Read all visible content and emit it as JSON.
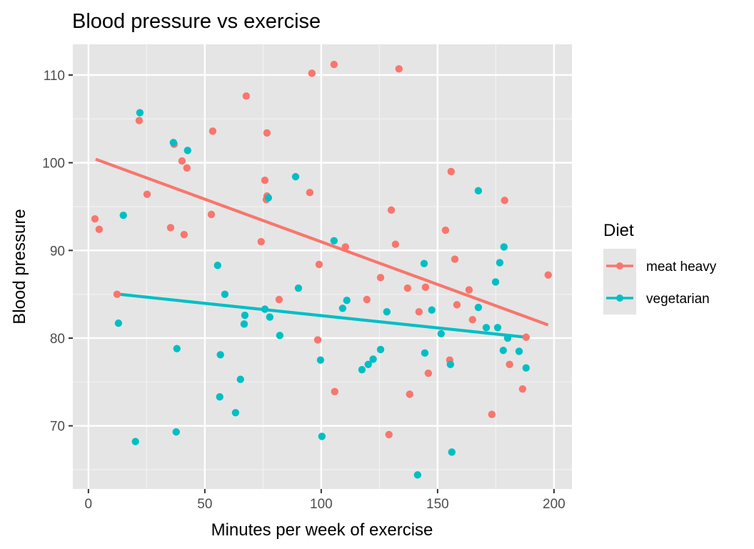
{
  "chart_data": {
    "type": "scatter",
    "title": "Blood pressure vs exercise",
    "xlabel": "Minutes per week of exercise",
    "ylabel": "Blood pressure",
    "xlim": [
      -6.7,
      207.7
    ],
    "ylim": [
      62.8,
      113.5
    ],
    "xticks": [
      0,
      50,
      100,
      150,
      200
    ],
    "xtick_labels": [
      "0",
      "50",
      "100",
      "150",
      "200"
    ],
    "yticks": [
      70,
      80,
      90,
      100,
      110
    ],
    "ytick_labels": [
      "70",
      "80",
      "90",
      "100",
      "110"
    ],
    "x_minor_gridlines": [
      25,
      75,
      125,
      175
    ],
    "y_minor_gridlines": [
      65,
      75,
      85,
      95,
      105
    ],
    "grid": true,
    "panel_background": "#e5e5e5",
    "legend": {
      "title": "Diet",
      "position": "right",
      "entries": [
        "meat heavy",
        "vegetarian"
      ]
    },
    "series": [
      {
        "name": "meat heavy",
        "color": "#f8766d",
        "points": [
          [
            2.8,
            93.6
          ],
          [
            4.6,
            92.4
          ],
          [
            12.3,
            85.0
          ],
          [
            21.8,
            104.8
          ],
          [
            25.2,
            96.4
          ],
          [
            36.8,
            102.1
          ],
          [
            35.3,
            92.6
          ],
          [
            40.2,
            100.2
          ],
          [
            42.3,
            99.4
          ],
          [
            41.1,
            91.8
          ],
          [
            53.4,
            103.6
          ],
          [
            52.8,
            94.1
          ],
          [
            67.8,
            107.6
          ],
          [
            76.7,
            103.4
          ],
          [
            75.8,
            98.0
          ],
          [
            76.7,
            96.2
          ],
          [
            76.4,
            95.8
          ],
          [
            74.2,
            91.0
          ],
          [
            81.9,
            84.4
          ],
          [
            96.0,
            110.2
          ],
          [
            95.1,
            96.6
          ],
          [
            99.1,
            88.4
          ],
          [
            98.5,
            79.8
          ],
          [
            105.5,
            111.2
          ],
          [
            110.4,
            90.4
          ],
          [
            105.8,
            73.9
          ],
          [
            119.6,
            84.4
          ],
          [
            125.5,
            86.9
          ],
          [
            130.1,
            94.6
          ],
          [
            131.9,
            90.7
          ],
          [
            129.1,
            69.0
          ],
          [
            133.4,
            110.7
          ],
          [
            137.1,
            85.7
          ],
          [
            138.0,
            73.6
          ],
          [
            142.0,
            83.0
          ],
          [
            144.8,
            85.8
          ],
          [
            146.0,
            76.0
          ],
          [
            153.4,
            92.3
          ],
          [
            155.8,
            99.0
          ],
          [
            155.2,
            77.5
          ],
          [
            157.4,
            89.0
          ],
          [
            158.3,
            83.8
          ],
          [
            163.5,
            85.5
          ],
          [
            165.0,
            82.1
          ],
          [
            173.3,
            71.3
          ],
          [
            178.8,
            95.7
          ],
          [
            180.9,
            77.0
          ],
          [
            186.5,
            74.2
          ],
          [
            188.0,
            80.1
          ],
          [
            197.5,
            87.2
          ]
        ],
        "trend_line": {
          "x": [
            3.1,
            197.5
          ],
          "y": [
            100.4,
            81.5
          ]
        }
      },
      {
        "name": "vegetarian",
        "color": "#00bfc4",
        "points": [
          [
            12.9,
            81.7
          ],
          [
            15.0,
            94.0
          ],
          [
            22.1,
            105.7
          ],
          [
            20.2,
            68.2
          ],
          [
            36.5,
            102.3
          ],
          [
            42.6,
            101.4
          ],
          [
            38.0,
            78.8
          ],
          [
            37.7,
            69.3
          ],
          [
            55.5,
            88.3
          ],
          [
            56.7,
            78.1
          ],
          [
            58.6,
            85.0
          ],
          [
            56.4,
            73.3
          ],
          [
            67.2,
            82.6
          ],
          [
            66.9,
            81.6
          ],
          [
            65.3,
            75.3
          ],
          [
            63.2,
            71.5
          ],
          [
            75.8,
            83.3
          ],
          [
            77.9,
            82.4
          ],
          [
            77.3,
            96.0
          ],
          [
            89.0,
            98.4
          ],
          [
            90.2,
            85.7
          ],
          [
            82.2,
            80.3
          ],
          [
            99.7,
            77.5
          ],
          [
            100.3,
            68.8
          ],
          [
            105.5,
            91.1
          ],
          [
            109.2,
            83.4
          ],
          [
            111.0,
            84.3
          ],
          [
            117.5,
            76.4
          ],
          [
            120.2,
            77.0
          ],
          [
            122.3,
            77.6
          ],
          [
            125.5,
            78.7
          ],
          [
            128.2,
            83.0
          ],
          [
            141.4,
            64.4
          ],
          [
            144.2,
            88.5
          ],
          [
            144.5,
            78.3
          ],
          [
            147.5,
            83.2
          ],
          [
            151.5,
            80.5
          ],
          [
            155.5,
            77.0
          ],
          [
            156.1,
            67.0
          ],
          [
            167.5,
            96.8
          ],
          [
            167.5,
            83.5
          ],
          [
            170.9,
            81.2
          ],
          [
            174.9,
            86.4
          ],
          [
            175.8,
            81.2
          ],
          [
            176.7,
            88.6
          ],
          [
            178.2,
            78.6
          ],
          [
            178.5,
            90.4
          ],
          [
            180.1,
            80.0
          ],
          [
            185.0,
            78.5
          ],
          [
            188.0,
            76.6
          ]
        ],
        "trend_line": {
          "x": [
            13.2,
            188.0
          ],
          "y": [
            85.0,
            80.1
          ]
        }
      }
    ]
  }
}
